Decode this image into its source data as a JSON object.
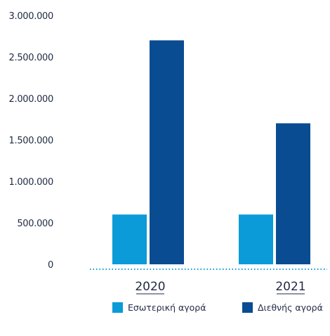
{
  "chart_data": {
    "type": "bar",
    "title": "",
    "xlabel": "",
    "ylabel": "",
    "ylim": [
      0,
      3000000
    ],
    "yticks": [
      0,
      500000,
      1000000,
      1500000,
      2000000,
      2500000,
      3000000
    ],
    "ytick_labels": [
      "0",
      "500.000",
      "1.000.000",
      "1.500.000",
      "2.000.000",
      "2.500.000",
      "3.000.000"
    ],
    "categories": [
      "2020",
      "2021"
    ],
    "series": [
      {
        "name": "Εσωτερική αγορά",
        "color": "#0a9bd8",
        "values": [
          600000,
          600000
        ]
      },
      {
        "name": "Διεθνής αγορά",
        "color": "#0a4c92",
        "values": [
          2700000,
          1700000
        ]
      }
    ],
    "grid": false,
    "baseline_style": "dotted",
    "legend_position": "bottom-right"
  }
}
